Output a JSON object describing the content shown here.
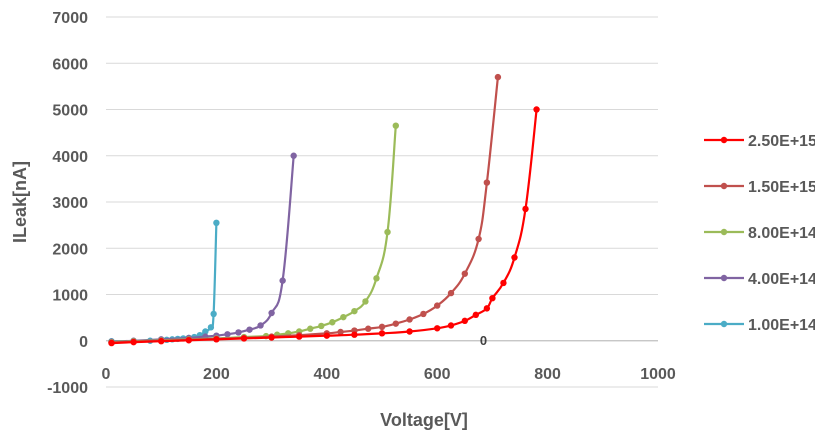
{
  "chart_data": {
    "type": "line",
    "title": "",
    "xlabel": "Voltage[V]",
    "ylabel": "ILeak[nA]",
    "xlim": [
      0,
      1000
    ],
    "ylim": [
      -1000,
      7000
    ],
    "x_ticks": [
      "0",
      "200",
      "400",
      "600",
      "800",
      "1000"
    ],
    "y_ticks": [
      "-1000",
      "0",
      "1000",
      "2000",
      "3000",
      "4000",
      "5000",
      "6000",
      "7000"
    ],
    "grid": "horizontal",
    "legend_position": "right",
    "annotations": [
      {
        "text": "0",
        "x": 690,
        "y": 300
      }
    ],
    "series": [
      {
        "name": "2.50E+15",
        "color": "#FF0000",
        "points": [
          [
            10,
            -50
          ],
          [
            50,
            -30
          ],
          [
            100,
            -10
          ],
          [
            150,
            10
          ],
          [
            200,
            30
          ],
          [
            250,
            50
          ],
          [
            300,
            70
          ],
          [
            350,
            90
          ],
          [
            400,
            110
          ],
          [
            450,
            130
          ],
          [
            500,
            160
          ],
          [
            550,
            200
          ],
          [
            600,
            270
          ],
          [
            625,
            330
          ],
          [
            650,
            430
          ],
          [
            670,
            560
          ],
          [
            690,
            700
          ],
          [
            700,
            920
          ],
          [
            720,
            1250
          ],
          [
            740,
            1800
          ],
          [
            760,
            2850
          ],
          [
            780,
            5000
          ]
        ]
      },
      {
        "name": "1.50E+15",
        "color": "#C0504D",
        "points": [
          [
            10,
            -40
          ],
          [
            50,
            -20
          ],
          [
            100,
            0
          ],
          [
            150,
            20
          ],
          [
            200,
            40
          ],
          [
            250,
            60
          ],
          [
            300,
            90
          ],
          [
            350,
            120
          ],
          [
            400,
            160
          ],
          [
            425,
            190
          ],
          [
            450,
            220
          ],
          [
            475,
            260
          ],
          [
            500,
            300
          ],
          [
            525,
            370
          ],
          [
            550,
            460
          ],
          [
            575,
            580
          ],
          [
            600,
            760
          ],
          [
            625,
            1030
          ],
          [
            650,
            1450
          ],
          [
            675,
            2200
          ],
          [
            690,
            3420
          ],
          [
            710,
            5700
          ]
        ]
      },
      {
        "name": "8.00E+14",
        "color": "#9BBB59",
        "points": [
          [
            10,
            -30
          ],
          [
            50,
            -10
          ],
          [
            100,
            10
          ],
          [
            150,
            30
          ],
          [
            200,
            50
          ],
          [
            250,
            80
          ],
          [
            290,
            100
          ],
          [
            310,
            130
          ],
          [
            330,
            160
          ],
          [
            350,
            200
          ],
          [
            370,
            260
          ],
          [
            390,
            320
          ],
          [
            410,
            400
          ],
          [
            430,
            510
          ],
          [
            450,
            640
          ],
          [
            470,
            850
          ],
          [
            490,
            1350
          ],
          [
            510,
            2350
          ],
          [
            525,
            4650
          ]
        ]
      },
      {
        "name": "4.00E+14",
        "color": "#8064A2",
        "points": [
          [
            10,
            -20
          ],
          [
            50,
            0
          ],
          [
            100,
            30
          ],
          [
            150,
            60
          ],
          [
            180,
            90
          ],
          [
            200,
            110
          ],
          [
            220,
            140
          ],
          [
            240,
            180
          ],
          [
            260,
            240
          ],
          [
            280,
            330
          ],
          [
            300,
            600
          ],
          [
            320,
            1300
          ],
          [
            340,
            4000
          ]
        ]
      },
      {
        "name": "1.00E+14",
        "color": "#4BACC6",
        "points": [
          [
            10,
            -10
          ],
          [
            50,
            -10
          ],
          [
            80,
            0
          ],
          [
            100,
            10
          ],
          [
            110,
            20
          ],
          [
            120,
            30
          ],
          [
            130,
            40
          ],
          [
            140,
            50
          ],
          [
            150,
            60
          ],
          [
            160,
            80
          ],
          [
            170,
            120
          ],
          [
            180,
            200
          ],
          [
            190,
            290
          ],
          [
            195,
            580
          ],
          [
            200,
            2550
          ]
        ]
      }
    ]
  }
}
